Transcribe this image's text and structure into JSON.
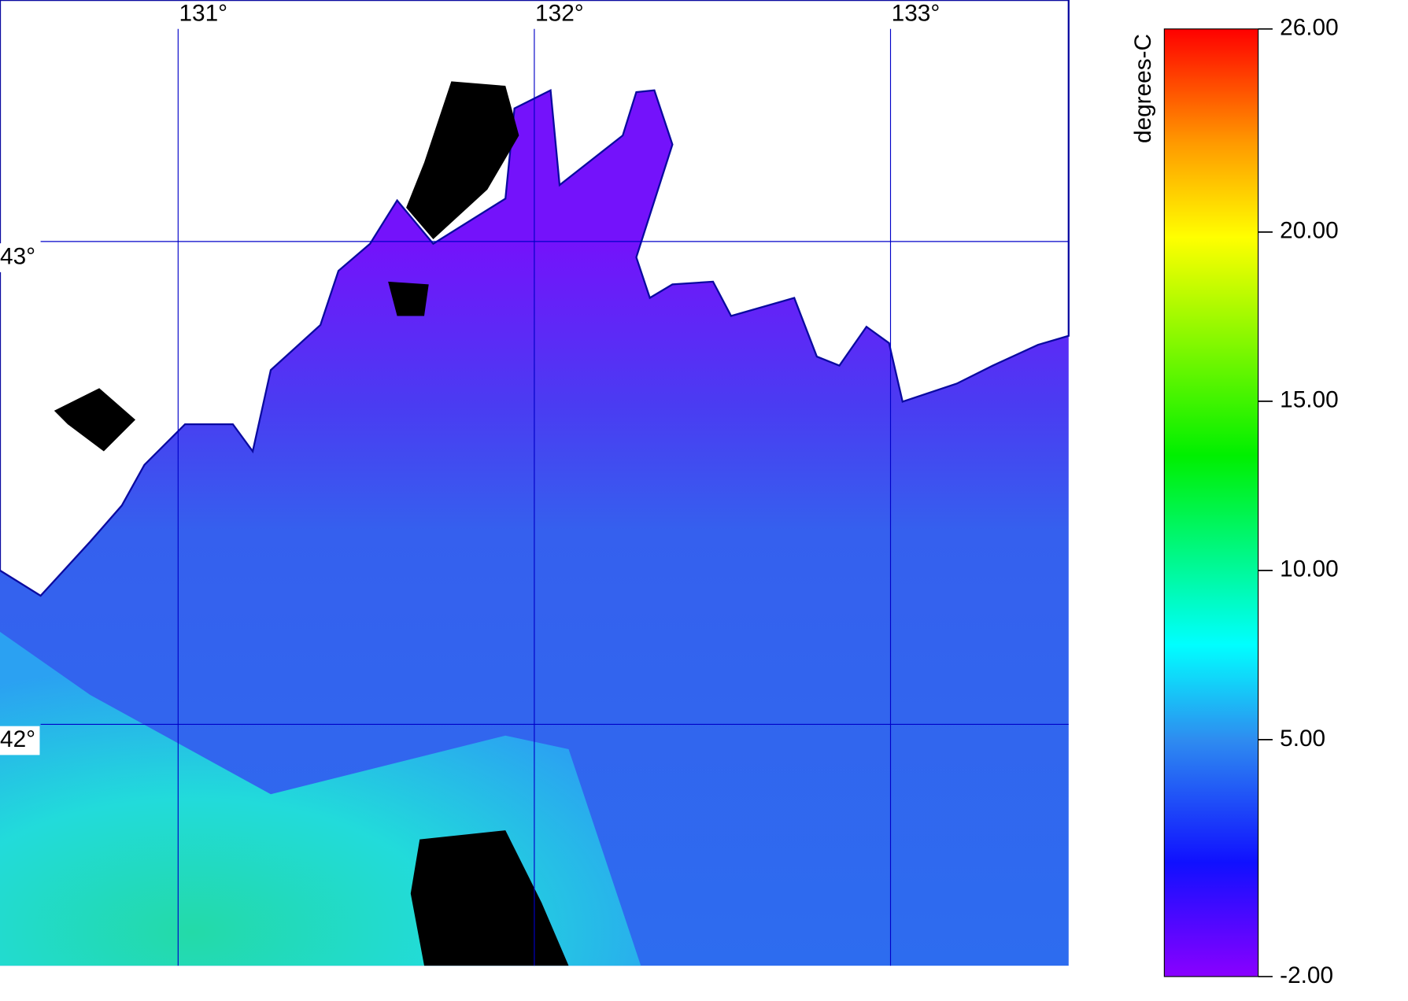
{
  "map": {
    "lonlim": [
      130.5,
      133.5
    ],
    "latlim": [
      41.5,
      43.5
    ],
    "lon_labels": [
      {
        "value": 131,
        "label": "131°"
      },
      {
        "value": 132,
        "label": "132°"
      },
      {
        "value": 133,
        "label": "133°"
      }
    ],
    "lat_labels": [
      {
        "value": 43,
        "label": "43°"
      },
      {
        "value": 42,
        "label": "42°"
      }
    ]
  },
  "colorbar": {
    "label": "degrees-C",
    "lim": [
      -2,
      26
    ],
    "ticks": [
      {
        "value": -2,
        "label": "-2.00"
      },
      {
        "value": 5,
        "label": "5.00"
      },
      {
        "value": 10,
        "label": "10.00"
      },
      {
        "value": 15,
        "label": "15.00"
      },
      {
        "value": 20,
        "label": "20.00"
      },
      {
        "value": 26,
        "label": "26.00"
      }
    ]
  }
}
